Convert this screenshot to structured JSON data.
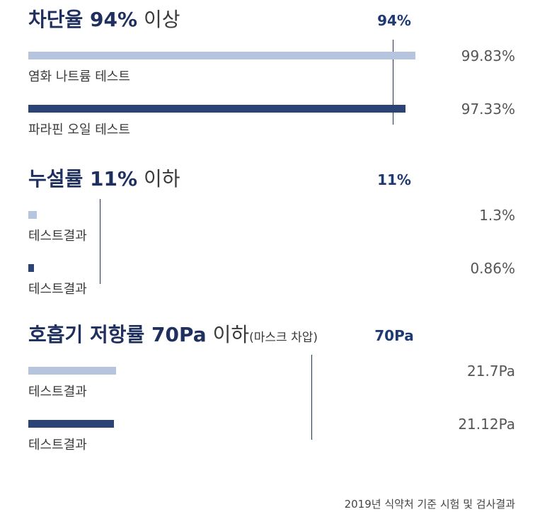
{
  "colors": {
    "bar_light": "#b6c4dd",
    "bar_dark": "#2c4475",
    "threshold_line": "#1f2f5e",
    "accent_text": "#1f3a73"
  },
  "chart_data": [
    {
      "type": "bar",
      "orientation": "horizontal",
      "title": {
        "bold": "차단율 94%",
        "light": "이상",
        "note": ""
      },
      "threshold": 94,
      "threshold_label": "94%",
      "unit": "%",
      "xlim": [
        0,
        100
      ],
      "series": [
        {
          "category": "염화 나트륨 테스트",
          "value": 99.83,
          "value_label": "99.83%",
          "color": "light"
        },
        {
          "category": "파라핀 오일 테스트",
          "value": 97.33,
          "value_label": "97.33%",
          "color": "dark"
        }
      ]
    },
    {
      "type": "bar",
      "orientation": "horizontal",
      "title": {
        "bold": "누설률 11%",
        "light": "이하",
        "note": ""
      },
      "threshold": 11,
      "threshold_label": "11%",
      "unit": "%",
      "xlim": [
        0,
        59.5
      ],
      "series": [
        {
          "category": "테스트결과",
          "value": 1.3,
          "value_label": "1.3%",
          "color": "light"
        },
        {
          "category": "테스트결과",
          "value": 0.86,
          "value_label": "0.86%",
          "color": "dark"
        }
      ]
    },
    {
      "type": "bar",
      "orientation": "horizontal",
      "title": {
        "bold": "호흡기 저항률 70Pa",
        "light": "이하",
        "note": "(마스크 차압)"
      },
      "threshold": 70,
      "threshold_label": "70Pa",
      "unit": "Pa",
      "xlim": [
        0,
        96
      ],
      "series": [
        {
          "category": "테스트결과",
          "value": 21.7,
          "value_label": "21.7Pa",
          "color": "light"
        },
        {
          "category": "테스트결과",
          "value": 21.12,
          "value_label": "21.12Pa",
          "color": "dark"
        }
      ]
    }
  ],
  "source": "2019년 식약처 기준 시험 및 검사결과"
}
